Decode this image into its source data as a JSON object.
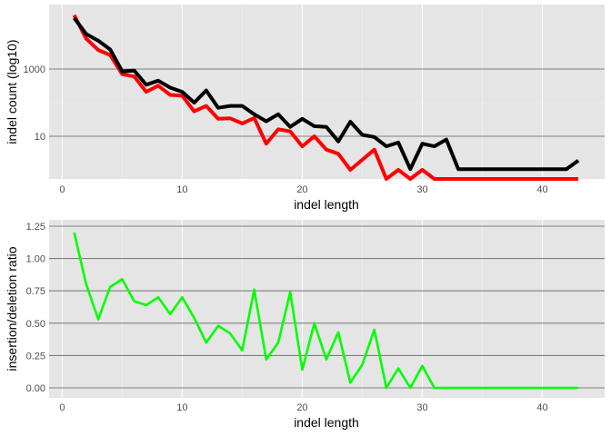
{
  "colors": {
    "panel_bg": "#e5e5e5",
    "grid_major": "#7f7f7f",
    "grid_minor": "#f2f2f2",
    "tick_text": "#4d4d4d",
    "series_black": "#000000",
    "series_red": "#ff0000",
    "series_green": "#00ff00"
  },
  "chart_data": [
    {
      "type": "line",
      "xlabel": "indel length",
      "ylabel": "indel count (log10)",
      "y_scale": "log10",
      "xlim": [
        1,
        43
      ],
      "x_ticks": [
        0,
        10,
        20,
        30,
        40
      ],
      "y_ticks": [
        10,
        1000
      ],
      "grid": true,
      "series": [
        {
          "color": "#000000",
          "x": [
            1,
            2,
            3,
            4,
            5,
            6,
            7,
            8,
            9,
            10,
            11,
            12,
            13,
            14,
            15,
            16,
            17,
            18,
            19,
            20,
            21,
            22,
            23,
            24,
            25,
            26,
            27,
            28,
            29,
            30,
            31,
            32,
            33,
            34,
            35,
            36,
            37,
            38,
            39,
            40,
            41,
            42,
            43
          ],
          "values": [
            33000,
            11000,
            7000,
            3800,
            850,
            900,
            340,
            450,
            280,
            210,
            100,
            230,
            70,
            80,
            80,
            45,
            28,
            45,
            19,
            33,
            20,
            19,
            7,
            27,
            11,
            9.5,
            5,
            6.5,
            1.05,
            6,
            5,
            8,
            1.05,
            1.05,
            1.05,
            1.05,
            1.05,
            1.05,
            1.05,
            1.05,
            1.05,
            1.05,
            1.9
          ]
        },
        {
          "color": "#ff0000",
          "x": [
            1,
            2,
            3,
            4,
            5,
            6,
            7,
            8,
            9,
            10,
            11,
            12,
            13,
            14,
            15,
            16,
            17,
            18,
            19,
            20,
            21,
            22,
            23,
            24,
            25,
            26,
            27,
            28,
            29,
            30,
            31,
            32,
            33,
            34,
            35,
            36,
            37,
            38,
            39,
            40,
            41,
            42,
            43
          ],
          "values": [
            40000,
            8000,
            3700,
            2600,
            700,
            600,
            210,
            320,
            170,
            160,
            55,
            80,
            33,
            34,
            24,
            35,
            6,
            16,
            14,
            5,
            10,
            4,
            3,
            1,
            2,
            4,
            0.35,
            1,
            0.4,
            1,
            0.35,
            0.35,
            0.35,
            0.35,
            0.35,
            0.35,
            0.35,
            0.35,
            0.35,
            0.35,
            0.35,
            0.35,
            0.35
          ]
        }
      ]
    },
    {
      "type": "line",
      "xlabel": "indel length",
      "ylabel": "insertion/deletion ratio",
      "xlim": [
        1,
        43
      ],
      "ylim": [
        0,
        1.25
      ],
      "x_ticks": [
        0,
        10,
        20,
        30,
        40
      ],
      "y_ticks": [
        "0.00",
        "0.25",
        "0.50",
        "0.75",
        "1.00",
        "1.25"
      ],
      "grid": true,
      "series": [
        {
          "color": "#00ff00",
          "x": [
            1,
            2,
            3,
            4,
            5,
            6,
            7,
            8,
            9,
            10,
            11,
            12,
            13,
            14,
            15,
            16,
            17,
            18,
            19,
            20,
            21,
            22,
            23,
            24,
            25,
            26,
            27,
            28,
            29,
            30,
            31,
            32,
            33,
            34,
            35,
            36,
            37,
            38,
            39,
            40,
            41,
            42,
            43
          ],
          "values": [
            1.2,
            0.8,
            0.53,
            0.78,
            0.84,
            0.67,
            0.64,
            0.7,
            0.57,
            0.7,
            0.54,
            0.35,
            0.48,
            0.42,
            0.29,
            0.76,
            0.22,
            0.35,
            0.74,
            0.14,
            0.5,
            0.22,
            0.43,
            0.04,
            0.18,
            0.45,
            0,
            0.15,
            0,
            0.17,
            0,
            0,
            0,
            0,
            0,
            0,
            0,
            0,
            0,
            0,
            0,
            0,
            0
          ]
        }
      ]
    }
  ]
}
